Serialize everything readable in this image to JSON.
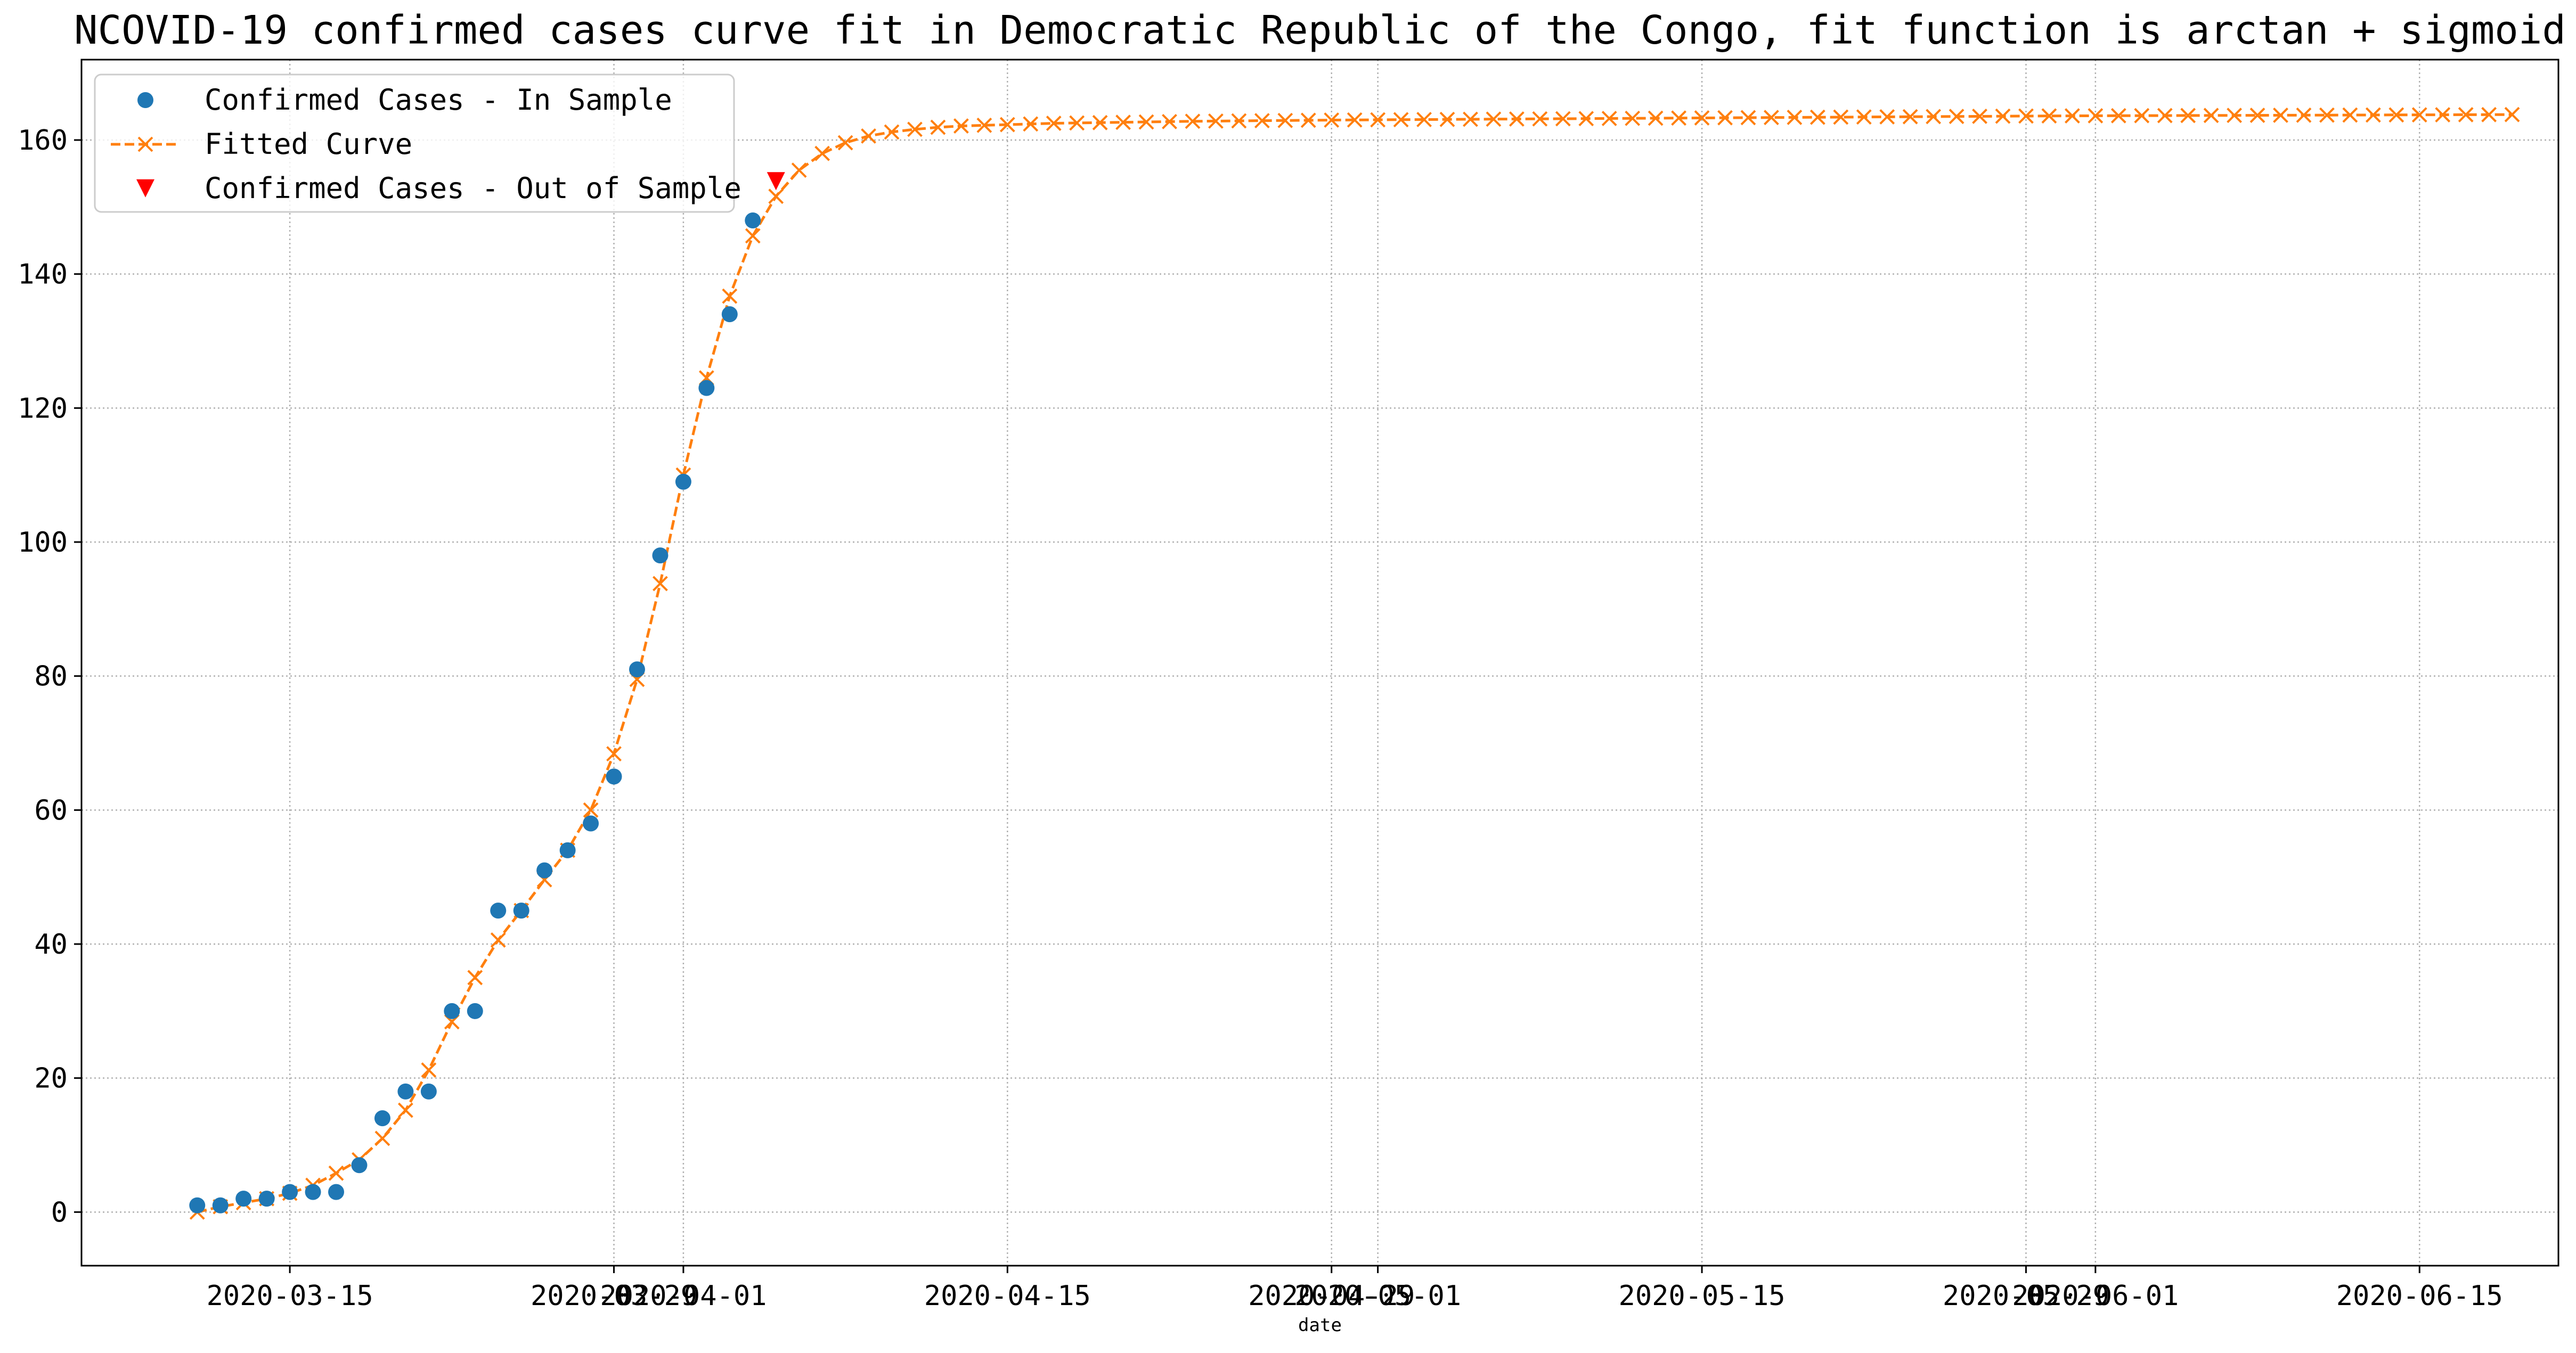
{
  "chart_data": {
    "type": "line",
    "title": "NCOVID-19 confirmed cases curve fit in Democratic Republic of the Congo, fit function is arctan + sigmoid",
    "xlabel": "date",
    "ylabel": "",
    "x_type": "date",
    "xlim": [
      "2020-03-06",
      "2020-06-21"
    ],
    "ylim": [
      -8,
      172
    ],
    "grid": true,
    "legend_position": "top-left",
    "x_ticks": [
      "2020-03-15",
      "2020-03-29",
      "2020-04-01",
      "2020-04-15",
      "2020-04-29",
      "2020-05-01",
      "2020-05-15",
      "2020-05-29",
      "2020-06-01",
      "2020-06-15"
    ],
    "y_ticks": [
      0,
      20,
      40,
      60,
      80,
      100,
      120,
      140,
      160
    ],
    "series": [
      {
        "name": "Confirmed Cases - In Sample",
        "style": "scatter",
        "marker": "circle",
        "color": "#1f77b4",
        "x": [
          "2020-03-11",
          "2020-03-12",
          "2020-03-13",
          "2020-03-14",
          "2020-03-15",
          "2020-03-16",
          "2020-03-17",
          "2020-03-18",
          "2020-03-19",
          "2020-03-20",
          "2020-03-21",
          "2020-03-22",
          "2020-03-23",
          "2020-03-24",
          "2020-03-25",
          "2020-03-26",
          "2020-03-27",
          "2020-03-28",
          "2020-03-29",
          "2020-03-30",
          "2020-03-31",
          "2020-04-01",
          "2020-04-02",
          "2020-04-03",
          "2020-04-04"
        ],
        "values": [
          1,
          1,
          2,
          2,
          3,
          3,
          3,
          7,
          14,
          18,
          18,
          30,
          30,
          45,
          45,
          51,
          54,
          58,
          65,
          81,
          98,
          109,
          123,
          134,
          148
        ]
      },
      {
        "name": "Fitted Curve",
        "style": "line",
        "linestyle": "dashed",
        "marker": "x",
        "color": "#ff7f0e",
        "x_start": "2020-03-11",
        "x_end": "2020-06-19",
        "values": [
          0,
          0.8,
          1.4,
          2.0,
          2.8,
          4.0,
          5.8,
          7.8,
          11,
          15.2,
          21.2,
          28.4,
          35,
          40.6,
          45,
          49.6,
          54,
          60,
          68.4,
          79.5,
          93.8,
          110,
          124.5,
          136.7,
          145.7,
          151.6,
          155.5,
          158,
          159.6,
          160.6,
          161.2,
          161.6,
          161.9,
          162.1,
          162.2,
          162.3,
          162.4,
          162.5,
          162.55,
          162.6,
          162.65,
          162.7,
          162.75,
          162.8,
          162.83,
          162.86,
          162.89,
          162.92,
          162.95,
          162.98,
          163.0,
          163.02,
          163.04,
          163.06,
          163.08,
          163.1,
          163.12,
          163.14,
          163.16,
          163.18,
          163.2,
          163.22,
          163.24,
          163.26,
          163.28,
          163.3,
          163.32,
          163.34,
          163.36,
          163.38,
          163.4,
          163.42,
          163.44,
          163.46,
          163.48,
          163.5,
          163.52,
          163.54,
          163.56,
          163.58,
          163.6,
          163.61,
          163.62,
          163.63,
          163.64,
          163.65,
          163.66,
          163.67,
          163.68,
          163.69,
          163.7,
          163.71,
          163.72,
          163.73,
          163.74,
          163.75,
          163.76,
          163.77,
          163.78,
          163.79,
          163.8
        ]
      },
      {
        "name": "Confirmed Cases - Out of Sample",
        "style": "scatter",
        "marker": "triangle-down",
        "color": "#ff0000",
        "x": [
          "2020-04-05"
        ],
        "values": [
          154
        ]
      }
    ]
  }
}
